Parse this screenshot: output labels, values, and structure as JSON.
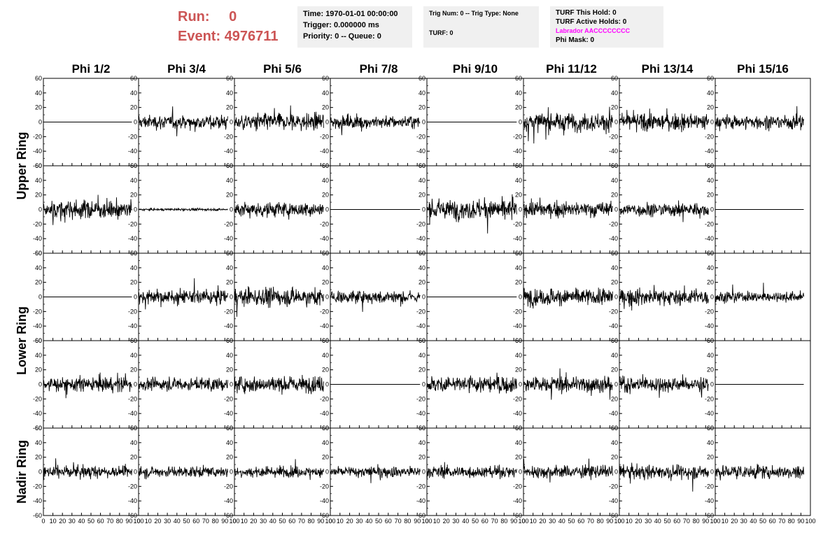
{
  "run_info": {
    "run_label": "Run:",
    "run_value": "0",
    "event_label": "Event:",
    "event_value": "4976711",
    "color": "#cc5555"
  },
  "time_box": {
    "lines": [
      "Time: 1970-01-01 00:00:00",
      "Trigger: 0.000000 ms",
      "Priority: 0 -- Queue: 0"
    ]
  },
  "trig_box": {
    "lines": [
      "Trig Num: 0 -- Trig Type: None",
      "",
      "TURF: 0"
    ]
  },
  "turf_box": {
    "lines": [
      "TURF This Hold: 0",
      "TURF Active Holds: 0",
      "Labrador AACCCCCCCC",
      "Phi Mask: 0"
    ],
    "labrador_color": "#ff00ff"
  },
  "chart_data": {
    "type": "line",
    "column_titles": [
      "Phi 1/2",
      "Phi 3/4",
      "Phi 5/6",
      "Phi 7/8",
      "Phi 9/10",
      "Phi 11/12",
      "Phi 13/14",
      "Phi 15/16"
    ],
    "row_titles": [
      {
        "label": "Upper Ring",
        "rows": [
          0,
          1
        ]
      },
      {
        "label": "Lower Ring",
        "rows": [
          2,
          3
        ]
      },
      {
        "label": "Nadir Ring",
        "rows": [
          4
        ]
      }
    ],
    "xlim": [
      0,
      100
    ],
    "ylim": [
      -60,
      60
    ],
    "y_ticks": [
      -60,
      -40,
      -20,
      0,
      20,
      40,
      60
    ],
    "x_ticks": [
      0,
      10,
      20,
      30,
      40,
      50,
      60,
      70,
      80,
      90,
      100
    ],
    "num_samples": 260,
    "line_color": "#000000",
    "panels": [
      [
        {
          "amp": 0
        },
        {
          "amp": 12
        },
        {
          "amp": 15
        },
        {
          "amp": 11
        },
        {
          "amp": 0
        },
        {
          "amp": 16
        },
        {
          "amp": 15
        },
        {
          "amp": 12
        }
      ],
      [
        {
          "amp": 16
        },
        {
          "amp": 2
        },
        {
          "amp": 13
        },
        {
          "amp": 0
        },
        {
          "amp": 17
        },
        {
          "amp": 13
        },
        {
          "amp": 12
        },
        {
          "amp": 0
        }
      ],
      [
        {
          "amp": 0
        },
        {
          "amp": 12
        },
        {
          "amp": 15
        },
        {
          "amp": 11
        },
        {
          "amp": 0
        },
        {
          "amp": 15
        },
        {
          "amp": 14
        },
        {
          "amp": 9
        }
      ],
      [
        {
          "amp": 13
        },
        {
          "amp": 11
        },
        {
          "amp": 14
        },
        {
          "amp": 0
        },
        {
          "amp": 15
        },
        {
          "amp": 14
        },
        {
          "amp": 13
        },
        {
          "amp": 0
        }
      ],
      [
        {
          "amp": 10
        },
        {
          "amp": 9
        },
        {
          "amp": 9
        },
        {
          "amp": 10
        },
        {
          "amp": 10
        },
        {
          "amp": 11
        },
        {
          "amp": 12
        },
        {
          "amp": 12
        }
      ]
    ]
  }
}
